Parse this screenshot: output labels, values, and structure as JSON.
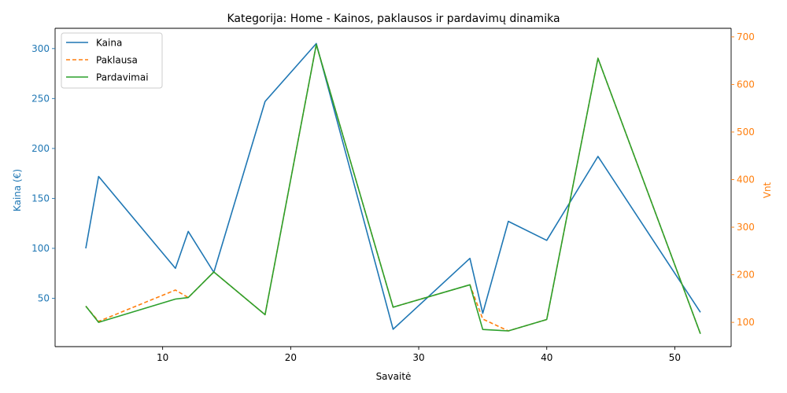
{
  "chart_data": {
    "type": "line",
    "title": "Kategorija: Home - Kainos, paklausos ir pardavimų dinamika",
    "xlabel": "Savaitė",
    "ylabel_left": "Kaina (€)",
    "ylabel_right": "Vnt",
    "xlim": [
      1.6,
      54.4
    ],
    "ylim_left": [
      1.6,
      320.3
    ],
    "ylim_right": [
      49,
      718
    ],
    "xticks": [
      10,
      20,
      30,
      40,
      50
    ],
    "yticks_left": [
      50,
      100,
      150,
      200,
      250,
      300
    ],
    "yticks_right": [
      100,
      200,
      300,
      400,
      500,
      600,
      700
    ],
    "legend_position": "upper left",
    "grid": false,
    "colors": {
      "left_axis": "#1f77b4",
      "right_axis": "#ff7f0e"
    },
    "series": [
      {
        "name": "Kaina",
        "axis": "left",
        "color": "#1f77b4",
        "dash": "solid",
        "x": [
          4,
          5,
          11,
          12,
          14,
          18,
          22,
          28,
          34,
          35,
          37,
          40,
          44,
          52
        ],
        "y": [
          100,
          172,
          80,
          117,
          76,
          247,
          305,
          19,
          90,
          35,
          127,
          108,
          192,
          36
        ]
      },
      {
        "name": "Paklausa",
        "axis": "right",
        "color": "#ff7f0e",
        "dash": "dashed",
        "x": [
          4,
          5,
          11,
          12,
          14,
          18,
          22,
          28,
          34,
          35,
          37,
          40,
          44,
          52
        ],
        "y": [
          134,
          102,
          168,
          152,
          206,
          116,
          684,
          132,
          179,
          107,
          82,
          106,
          655,
          76
        ]
      },
      {
        "name": "Pardavimai",
        "axis": "right",
        "color": "#2ca02c",
        "dash": "solid",
        "x": [
          4,
          5,
          11,
          12,
          14,
          18,
          22,
          28,
          34,
          35,
          37,
          40,
          44,
          52
        ],
        "y": [
          134,
          100,
          149,
          152,
          206,
          116,
          684,
          132,
          179,
          85,
          82,
          106,
          655,
          76
        ]
      }
    ]
  }
}
